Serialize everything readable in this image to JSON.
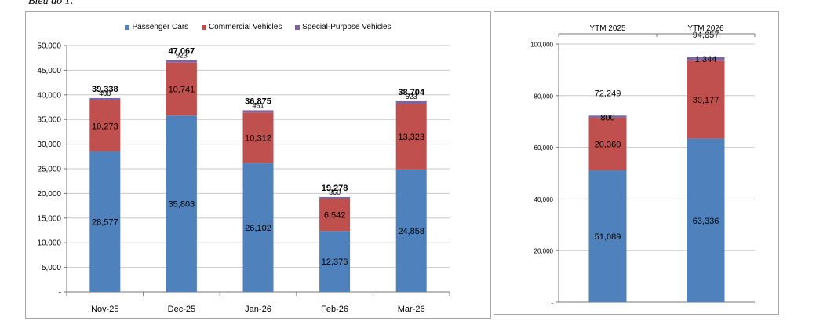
{
  "caption": "Biểu đồ 1:",
  "colors": {
    "passenger": "#4F81BD",
    "commercial": "#C0504D",
    "special": "#8064A2"
  },
  "chart_data": [
    {
      "type": "bar",
      "stacked": true,
      "title": "",
      "categories": [
        "Nov-25",
        "Dec-25",
        "Jan-26",
        "Feb-26",
        "Mar-26"
      ],
      "series": [
        {
          "name": "Passenger Cars",
          "values": [
            28577,
            35803,
            26102,
            12376,
            24858
          ]
        },
        {
          "name": "Commercial Vehicles",
          "values": [
            10273,
            10741,
            10312,
            6542,
            13323
          ]
        },
        {
          "name": "Special-Purpose Vehicles",
          "values": [
            488,
            523,
            461,
            360,
            523
          ]
        }
      ],
      "value_labels": [
        [
          "28,577",
          "35,803",
          "26,102",
          "12,376",
          "24,858"
        ],
        [
          "10,273",
          "10,741",
          "10,312",
          "6,542",
          "13,323"
        ],
        [
          "488",
          "523",
          "461",
          "360",
          "523"
        ]
      ],
      "totals": [
        "39,338",
        "47,067",
        "36,875",
        "19,278",
        "38,704"
      ],
      "ylim": [
        0,
        50000
      ],
      "yticks": [
        "-",
        "5,000",
        "10,000",
        "15,000",
        "20,000",
        "25,000",
        "30,000",
        "35,000",
        "40,000",
        "45,000",
        "50,000"
      ],
      "grid": true,
      "legend": "top"
    },
    {
      "type": "bar",
      "stacked": true,
      "title": "",
      "categories": [
        "YTM 2025",
        "YTM 2026"
      ],
      "series": [
        {
          "values": [
            51089,
            63336
          ]
        },
        {
          "values": [
            20360,
            30177
          ]
        },
        {
          "values": [
            800,
            1344
          ]
        }
      ],
      "value_labels": [
        [
          "51,089",
          "63,336"
        ],
        [
          "20,360",
          "30,177"
        ],
        [
          "800",
          "1,344"
        ]
      ],
      "totals": [
        "72,249",
        "94,857"
      ],
      "ylim": [
        0,
        100000
      ],
      "yticks": [
        "-",
        "20,000",
        "40,000",
        "60,000",
        "80,000",
        "100,000"
      ],
      "grid": true,
      "category_axis": "top"
    }
  ]
}
